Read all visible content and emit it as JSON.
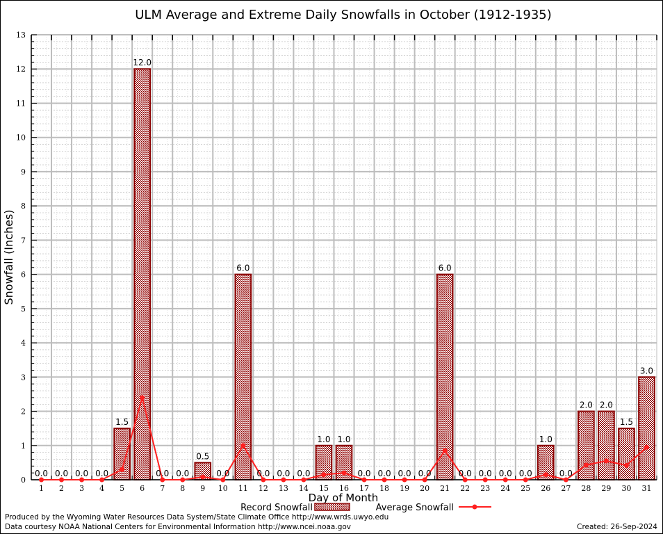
{
  "chart_data": {
    "type": "bar",
    "title": "ULM Average and Extreme Daily Snowfalls in October (1912-1935)",
    "xlabel": "Day of Month",
    "ylabel": "Snowfall (Inches)",
    "ylim": [
      0,
      13
    ],
    "yticks": [
      0,
      1,
      2,
      3,
      4,
      5,
      6,
      7,
      8,
      9,
      10,
      11,
      12,
      13
    ],
    "grid": true,
    "legend_position": "bottom-center",
    "categories": [
      "1",
      "2",
      "3",
      "4",
      "5",
      "6",
      "7",
      "8",
      "9",
      "10",
      "11",
      "12",
      "13",
      "14",
      "15",
      "16",
      "17",
      "18",
      "19",
      "20",
      "21",
      "22",
      "23",
      "24",
      "25",
      "26",
      "27",
      "28",
      "29",
      "30",
      "31"
    ],
    "series": [
      {
        "name": "Record Snowfall",
        "kind": "bar",
        "color": "#8b0000",
        "values": [
          0,
          0,
          0,
          0,
          1.5,
          12.0,
          0,
          0,
          0.5,
          0,
          6.0,
          0,
          0,
          0,
          1.0,
          1.0,
          0,
          0,
          0,
          0,
          6.0,
          0,
          0,
          0,
          0,
          1.0,
          0,
          2.0,
          2.0,
          1.5,
          3.0
        ],
        "labels": [
          "0.0",
          "0.0",
          "0.0",
          "0.0",
          "1.5",
          "12.0",
          "0.0",
          "0.0",
          "0.5",
          "0.0",
          "6.0",
          "0.0",
          "0.0",
          "0.0",
          "1.0",
          "1.0",
          "0.0",
          "0.0",
          "0.0",
          "0.0",
          "6.0",
          "0.0",
          "0.0",
          "0.0",
          "0.0",
          "1.0",
          "0.0",
          "2.0",
          "2.0",
          "1.5",
          "3.0"
        ]
      },
      {
        "name": "Average Snowfall",
        "kind": "line",
        "color": "#ff2020",
        "values": [
          0,
          0,
          0,
          0,
          0.3,
          2.4,
          0,
          0,
          0.08,
          0,
          1.0,
          0,
          0,
          0,
          0.15,
          0.2,
          0,
          0,
          0,
          0,
          0.85,
          0,
          0,
          0,
          0,
          0.15,
          0,
          0.43,
          0.55,
          0.42,
          0.95
        ]
      }
    ]
  },
  "footer": {
    "produced_by": "Produced by the Wyoming Water Resources Data System/State Climate Office http://www.wrds.uwyo.edu",
    "data_courtesy": "Data courtesy NOAA National Centers for Environmental Information http://www.ncei.noaa.gov",
    "created": "Created: 26-Sep-2024"
  }
}
